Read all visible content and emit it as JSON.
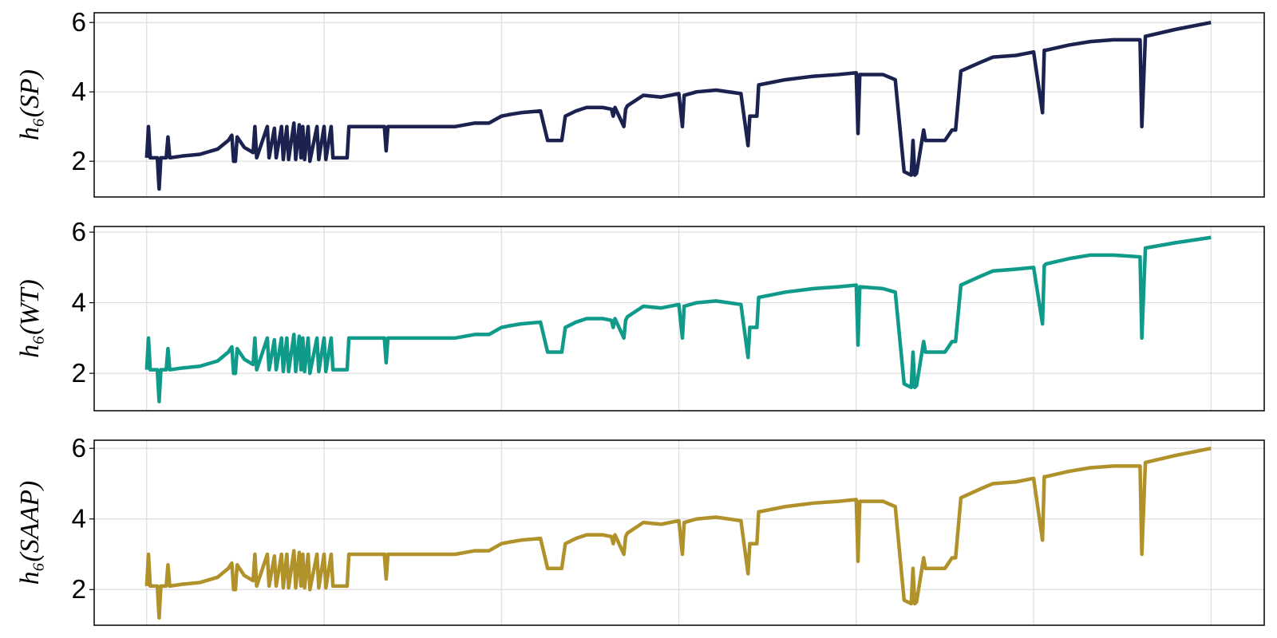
{
  "chart_data": [
    {
      "type": "line",
      "y_label": "h₆(SP)",
      "color": "#1b2250",
      "grid": true,
      "x": [
        0,
        1,
        2,
        6,
        7,
        8,
        11,
        12,
        13,
        20,
        30,
        40,
        46,
        48,
        49,
        50,
        51,
        55,
        60,
        61,
        62,
        68,
        69,
        72,
        73,
        76,
        77,
        79,
        80,
        83,
        84,
        86,
        87,
        88,
        89,
        91,
        92,
        96,
        97,
        100,
        101,
        104,
        105,
        110,
        113,
        114,
        115,
        125,
        134,
        135,
        136,
        150,
        174,
        185,
        193,
        200,
        205,
        211,
        222,
        226,
        234,
        236,
        242,
        248,
        257,
        262,
        263,
        264,
        269,
        270,
        271,
        280,
        290,
        300,
        302,
        303,
        310,
        321,
        335,
        339,
        340,
        344,
        345,
        360,
        376,
        390,
        400,
        401,
        402,
        415,
        422,
        427,
        431,
        432,
        433,
        434,
        438,
        439,
        450,
        454,
        456,
        459,
        470,
        477,
        490,
        500,
        505,
        506,
        507,
        520,
        532,
        545,
        560,
        561,
        563,
        580,
        600
      ],
      "values": [
        2.1,
        3.0,
        2.1,
        2.1,
        1.2,
        2.1,
        2.1,
        2.7,
        2.1,
        2.15,
        2.2,
        2.35,
        2.6,
        2.75,
        2.0,
        2.0,
        2.7,
        2.4,
        2.25,
        3.0,
        2.1,
        3.0,
        2.1,
        2.95,
        2.1,
        3.0,
        2.05,
        3.0,
        2.05,
        3.1,
        2.05,
        3.05,
        2.1,
        3.0,
        2.05,
        3.0,
        2.0,
        3.0,
        2.05,
        3.0,
        2.05,
        3.0,
        2.1,
        2.1,
        2.1,
        3.0,
        3.0,
        3.0,
        3.0,
        2.3,
        3.0,
        3.0,
        3.0,
        3.1,
        3.1,
        3.3,
        3.35,
        3.4,
        3.45,
        2.6,
        2.6,
        3.3,
        3.45,
        3.55,
        3.55,
        3.5,
        3.3,
        3.55,
        3.0,
        3.5,
        3.6,
        3.9,
        3.85,
        3.95,
        3.0,
        3.9,
        4.0,
        4.05,
        3.95,
        2.45,
        3.3,
        3.3,
        4.2,
        4.35,
        4.45,
        4.5,
        4.55,
        2.8,
        4.5,
        4.5,
        4.35,
        1.7,
        1.6,
        2.6,
        1.6,
        1.65,
        2.9,
        2.6,
        2.6,
        2.9,
        2.9,
        4.6,
        4.85,
        5.0,
        5.05,
        5.15,
        3.4,
        5.2,
        5.2,
        5.35,
        5.45,
        5.5,
        5.5,
        3.0,
        5.6,
        5.8,
        6.0
      ],
      "xlim": [
        -29.6,
        630
      ],
      "xticks": [
        0,
        100,
        200,
        300,
        400,
        500,
        600
      ],
      "ylim": [
        0.97,
        6.28
      ],
      "yticks": [
        2,
        4,
        6
      ]
    },
    {
      "type": "line",
      "y_label": "h₆(WT)",
      "color": "#109a8a",
      "grid": true,
      "x": [
        0,
        1,
        2,
        6,
        7,
        8,
        11,
        12,
        13,
        20,
        30,
        40,
        46,
        48,
        49,
        50,
        51,
        55,
        60,
        61,
        62,
        68,
        69,
        72,
        73,
        76,
        77,
        79,
        80,
        83,
        84,
        86,
        87,
        88,
        89,
        91,
        92,
        96,
        97,
        100,
        101,
        104,
        105,
        110,
        113,
        114,
        115,
        125,
        134,
        135,
        136,
        150,
        174,
        185,
        193,
        200,
        205,
        211,
        222,
        226,
        234,
        236,
        242,
        248,
        257,
        262,
        263,
        264,
        269,
        270,
        271,
        280,
        290,
        300,
        302,
        303,
        310,
        321,
        335,
        339,
        340,
        344,
        345,
        360,
        376,
        390,
        400,
        401,
        402,
        415,
        422,
        427,
        431,
        432,
        433,
        434,
        438,
        439,
        450,
        454,
        456,
        459,
        470,
        477,
        490,
        500,
        505,
        506,
        507,
        520,
        532,
        545,
        560,
        561,
        563,
        580,
        600
      ],
      "values": [
        2.1,
        3.0,
        2.1,
        2.1,
        1.2,
        2.1,
        2.1,
        2.7,
        2.1,
        2.15,
        2.2,
        2.35,
        2.6,
        2.75,
        2.0,
        2.0,
        2.7,
        2.4,
        2.25,
        3.0,
        2.1,
        3.0,
        2.1,
        2.95,
        2.1,
        3.0,
        2.05,
        3.0,
        2.05,
        3.1,
        2.05,
        3.05,
        2.1,
        3.0,
        2.05,
        3.0,
        2.0,
        3.0,
        2.05,
        3.0,
        2.05,
        3.0,
        2.1,
        2.1,
        2.1,
        3.0,
        3.0,
        3.0,
        3.0,
        2.3,
        3.0,
        3.0,
        3.0,
        3.1,
        3.1,
        3.3,
        3.35,
        3.4,
        3.45,
        2.6,
        2.6,
        3.3,
        3.45,
        3.55,
        3.55,
        3.5,
        3.3,
        3.55,
        3.0,
        3.5,
        3.6,
        3.9,
        3.85,
        3.95,
        3.0,
        3.9,
        4.0,
        4.05,
        3.95,
        2.45,
        3.3,
        3.3,
        4.15,
        4.3,
        4.4,
        4.45,
        4.5,
        2.8,
        4.45,
        4.4,
        4.3,
        1.7,
        1.6,
        2.6,
        1.6,
        1.65,
        2.9,
        2.6,
        2.6,
        2.9,
        2.9,
        4.5,
        4.75,
        4.9,
        4.95,
        5.0,
        3.4,
        5.05,
        5.1,
        5.25,
        5.35,
        5.35,
        5.3,
        3.0,
        5.55,
        5.7,
        5.85
      ],
      "xlim": [
        -29.6,
        630
      ],
      "xticks": [
        0,
        100,
        200,
        300,
        400,
        500,
        600
      ],
      "ylim": [
        0.94,
        6.16
      ],
      "yticks": [
        2,
        4,
        6
      ]
    },
    {
      "type": "line",
      "y_label": "h₆(SAAP)",
      "color": "#b0912a",
      "grid": true,
      "x": [
        0,
        1,
        2,
        6,
        7,
        8,
        11,
        12,
        13,
        20,
        30,
        40,
        46,
        48,
        49,
        50,
        51,
        55,
        60,
        61,
        62,
        68,
        69,
        72,
        73,
        76,
        77,
        79,
        80,
        83,
        84,
        86,
        87,
        88,
        89,
        91,
        92,
        96,
        97,
        100,
        101,
        104,
        105,
        110,
        113,
        114,
        115,
        125,
        134,
        135,
        136,
        150,
        174,
        185,
        193,
        200,
        205,
        211,
        222,
        226,
        234,
        236,
        242,
        248,
        257,
        262,
        263,
        264,
        269,
        270,
        271,
        280,
        290,
        300,
        302,
        303,
        310,
        321,
        335,
        339,
        340,
        344,
        345,
        360,
        376,
        390,
        400,
        401,
        402,
        415,
        422,
        427,
        431,
        432,
        433,
        434,
        438,
        439,
        450,
        454,
        456,
        459,
        470,
        477,
        490,
        500,
        505,
        506,
        507,
        520,
        532,
        545,
        560,
        561,
        563,
        580,
        600
      ],
      "values": [
        2.1,
        3.0,
        2.1,
        2.1,
        1.2,
        2.1,
        2.1,
        2.7,
        2.1,
        2.15,
        2.2,
        2.35,
        2.6,
        2.75,
        2.0,
        2.0,
        2.7,
        2.4,
        2.25,
        3.0,
        2.1,
        3.0,
        2.1,
        2.95,
        2.1,
        3.0,
        2.05,
        3.0,
        2.05,
        3.1,
        2.05,
        3.05,
        2.1,
        3.0,
        2.05,
        3.0,
        2.0,
        3.0,
        2.05,
        3.0,
        2.05,
        3.0,
        2.1,
        2.1,
        2.1,
        3.0,
        3.0,
        3.0,
        3.0,
        2.3,
        3.0,
        3.0,
        3.0,
        3.1,
        3.1,
        3.3,
        3.35,
        3.4,
        3.45,
        2.6,
        2.6,
        3.3,
        3.45,
        3.55,
        3.55,
        3.5,
        3.3,
        3.55,
        3.0,
        3.5,
        3.6,
        3.9,
        3.85,
        3.95,
        3.0,
        3.9,
        4.0,
        4.05,
        3.95,
        2.45,
        3.3,
        3.3,
        4.2,
        4.35,
        4.45,
        4.5,
        4.55,
        2.8,
        4.5,
        4.5,
        4.35,
        1.7,
        1.6,
        2.6,
        1.6,
        1.65,
        2.9,
        2.6,
        2.6,
        2.9,
        2.9,
        4.6,
        4.85,
        5.0,
        5.05,
        5.15,
        3.4,
        5.2,
        5.2,
        5.35,
        5.45,
        5.5,
        5.5,
        3.0,
        5.6,
        5.8,
        6.0
      ],
      "xlim": [
        -29.6,
        630
      ],
      "xticks": [
        0,
        100,
        200,
        300,
        400,
        500,
        600
      ],
      "ylim": [
        0.99,
        6.23
      ],
      "yticks": [
        2,
        4,
        6
      ]
    }
  ]
}
